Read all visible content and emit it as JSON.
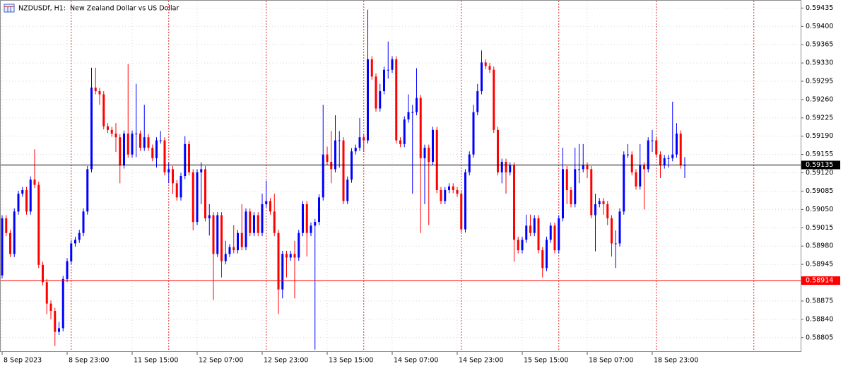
{
  "chart_data": {
    "type": "candlestick",
    "title": "NZDUSDf, H1:  New Zealand Dollar vs US Dollar",
    "up_color": "#0000ff",
    "down_color": "#ff0000",
    "grid": true,
    "ylim": [
      0.58779,
      0.59449
    ],
    "yticks": [
      0.59435,
      {
        "value": 0.594,
        "label": "0.59400"
      },
      0.59365,
      {
        "value": 0.5933,
        "label": "0.59330"
      },
      0.59295,
      {
        "value": 0.5926,
        "label": "0.59260"
      },
      0.59225,
      {
        "value": 0.5919,
        "label": "0.59190"
      },
      0.59155,
      {
        "value": 0.5912,
        "label": "0.59120"
      },
      0.59085,
      {
        "value": 0.5905,
        "label": "0.59050"
      },
      0.59015,
      {
        "value": 0.5898,
        "label": "0.58980"
      },
      0.58945,
      0.58875,
      {
        "value": 0.5884,
        "label": "0.58840"
      },
      0.58805
    ],
    "price_lines": [
      {
        "value": 0.59135,
        "color": "#000000"
      },
      {
        "value": 0.58914,
        "color": "#ff0000"
      }
    ],
    "categories": [
      "8 Sep 2023",
      null,
      null,
      null,
      null,
      null,
      null,
      null,
      null,
      null,
      null,
      null,
      null,
      null,
      null,
      null,
      "8 Sep 23:00",
      null,
      null,
      null,
      null,
      null,
      null,
      null,
      null,
      null,
      null,
      null,
      null,
      null,
      null,
      null,
      "11 Sep 15:00",
      null,
      null,
      null,
      null,
      null,
      null,
      null,
      null,
      null,
      null,
      null,
      null,
      null,
      null,
      null,
      "12 Sep 07:00",
      null,
      null,
      null,
      null,
      null,
      null,
      null,
      null,
      null,
      null,
      null,
      null,
      null,
      null,
      null,
      "12 Sep 23:00",
      null,
      null,
      null,
      null,
      null,
      null,
      null,
      null,
      null,
      null,
      null,
      null,
      null,
      null,
      null,
      "13 Sep 15:00",
      null,
      null,
      null,
      null,
      null,
      null,
      null,
      null,
      null,
      null,
      null,
      null,
      null,
      null,
      null,
      "14 Sep 07:00",
      null,
      null,
      null,
      null,
      null,
      null,
      null,
      null,
      null,
      null,
      null,
      null,
      null,
      null,
      null,
      "14 Sep 23:00",
      null,
      null,
      null,
      null,
      null,
      null,
      null,
      null,
      null,
      null,
      null,
      null,
      null,
      null,
      null,
      "15 Sep 15:00",
      null,
      null,
      null,
      null,
      null,
      null,
      null,
      null,
      null,
      null,
      null,
      null,
      null,
      null,
      null,
      "18 Sep 07:00",
      null,
      null,
      null,
      null,
      null,
      null,
      null,
      null,
      null,
      null,
      null,
      null,
      null,
      null,
      null,
      "18 Sep 23:00",
      null,
      null,
      null,
      null,
      null,
      null,
      null,
      null
    ],
    "open": [
      0.58924,
      0.59033,
      0.59005,
      0.58965,
      0.59046,
      0.5908,
      0.59087,
      0.59046,
      0.59107,
      0.59097,
      0.58944,
      0.58911,
      0.5887,
      0.58856,
      0.58816,
      0.58823,
      0.58917,
      0.58951,
      0.58985,
      0.58992,
      0.59005,
      0.59046,
      0.59127,
      0.59283,
      0.59276,
      0.5927,
      0.59209,
      0.59202,
      0.59195,
      0.59188,
      0.59134,
      0.59195,
      0.59155,
      0.59195,
      0.59195,
      0.59168,
      0.59188,
      0.59168,
      0.59148,
      0.59182,
      0.59182,
      0.59121,
      0.59127,
      0.591,
      0.59073,
      0.59114,
      0.59175,
      0.59121,
      0.59026,
      0.59121,
      0.59127,
      0.59033,
      0.59039,
      0.58965,
      0.59039,
      0.58951,
      0.58965,
      0.58978,
      0.58972,
      0.59005,
      0.58978,
      0.59046,
      0.59005,
      0.59039,
      0.59005,
      0.5906,
      0.59066,
      0.59046,
      0.59005,
      0.58897,
      0.58965,
      0.58958,
      0.58965,
      0.58958,
      0.59005,
      0.5906,
      0.59005,
      0.59019,
      0.59026,
      0.59073,
      0.59155,
      0.59141,
      0.59127,
      0.59182,
      0.59182,
      0.59066,
      0.59107,
      0.59161,
      0.59168,
      0.59188,
      0.59182,
      0.59337,
      0.59304,
      0.59243,
      0.59276,
      0.59317,
      0.59317,
      0.59337,
      0.59182,
      0.59175,
      0.59222,
      0.59236,
      0.59236,
      0.59263,
      0.59148,
      0.59168,
      0.59141,
      0.59202,
      0.59087,
      0.59066,
      0.59087,
      0.59094,
      0.59087,
      0.5908,
      0.59012,
      0.59121,
      0.59155,
      0.59236,
      0.59276,
      0.59331,
      0.59324,
      0.59317,
      0.59202,
      0.59121,
      0.59141,
      0.59121,
      0.59134,
      0.58992,
      0.58972,
      0.58992,
      0.59019,
      0.59005,
      0.59033,
      0.58972,
      0.58938,
      0.58992,
      0.59019,
      0.58972,
      0.59033,
      0.59127,
      0.59087,
      0.5906,
      0.59127,
      0.59127,
      0.59134,
      0.59127,
      0.59039,
      0.5906,
      0.59066,
      0.5906,
      0.59033,
      0.58985,
      0.58985,
      0.59046,
      0.59155,
      0.59155,
      0.59121,
      0.59094,
      0.59134,
      0.59127,
      0.59182,
      0.59182,
      0.59155,
      0.59134,
      0.59148,
      0.59148,
      0.59155,
      0.59195,
      0.59134
    ],
    "high": [
      0.59039,
      0.59039,
      0.59011,
      0.59052,
      0.59086,
      0.59093,
      0.59093,
      0.59113,
      0.59165,
      0.59103,
      0.5895,
      0.58917,
      0.58876,
      0.58862,
      0.58835,
      0.58923,
      0.58957,
      0.58991,
      0.58998,
      0.59011,
      0.59052,
      0.59133,
      0.59321,
      0.59321,
      0.59282,
      0.59276,
      0.59215,
      0.59208,
      0.59215,
      0.59194,
      0.59201,
      0.59328,
      0.59201,
      0.5929,
      0.59201,
      0.5925,
      0.59194,
      0.59174,
      0.59188,
      0.592,
      0.59188,
      0.5914,
      0.59133,
      0.59106,
      0.5912,
      0.5919,
      0.59181,
      0.59127,
      0.59127,
      0.5914,
      0.59133,
      0.5906,
      0.59045,
      0.59045,
      0.59045,
      0.5899,
      0.58984,
      0.5902,
      0.59011,
      0.5906,
      0.59052,
      0.59052,
      0.59045,
      0.59045,
      0.5908,
      0.59105,
      0.59072,
      0.5908,
      0.59011,
      0.58971,
      0.58971,
      0.58971,
      0.5899,
      0.59011,
      0.59066,
      0.59066,
      0.59025,
      0.59032,
      0.59079,
      0.5925,
      0.5917,
      0.592,
      0.5923,
      0.592,
      0.59188,
      0.59113,
      0.59167,
      0.59174,
      0.59225,
      0.59194,
      0.59432,
      0.59343,
      0.5931,
      0.5929,
      0.59323,
      0.59371,
      0.59343,
      0.59343,
      0.59188,
      0.59228,
      0.5927,
      0.5925,
      0.5932,
      0.59269,
      0.59174,
      0.59174,
      0.59208,
      0.59208,
      0.59093,
      0.59093,
      0.591,
      0.591,
      0.59093,
      0.59086,
      0.59127,
      0.59161,
      0.5925,
      0.5929,
      0.59354,
      0.59337,
      0.5933,
      0.59323,
      0.59208,
      0.59147,
      0.59147,
      0.5914,
      0.5914,
      0.58998,
      0.58998,
      0.5904,
      0.5904,
      0.59039,
      0.59039,
      0.58978,
      0.58998,
      0.59025,
      0.59025,
      0.59039,
      0.59168,
      0.59133,
      0.59093,
      0.59168,
      0.59175,
      0.59175,
      0.5914,
      0.59133,
      0.5908,
      0.59072,
      0.59072,
      0.59066,
      0.59039,
      0.5901,
      0.59052,
      0.59161,
      0.59175,
      0.59161,
      0.59127,
      0.59175,
      0.5914,
      0.59188,
      0.59202,
      0.59188,
      0.59161,
      0.59154,
      0.59154,
      0.59256,
      0.59215,
      0.59201,
      0.5915
    ],
    "low": [
      0.58918,
      0.58999,
      0.58959,
      0.58959,
      0.5904,
      0.59074,
      0.5904,
      0.5904,
      0.59091,
      0.58938,
      0.58905,
      0.5885,
      0.5884,
      0.58789,
      0.5881,
      0.58817,
      0.58911,
      0.58945,
      0.58979,
      0.58986,
      0.58999,
      0.5904,
      0.59121,
      0.5927,
      0.5925,
      0.59203,
      0.59196,
      0.59189,
      0.5916,
      0.591,
      0.59128,
      0.59149,
      0.59149,
      0.5915,
      0.59162,
      0.59162,
      0.59162,
      0.59142,
      0.5913,
      0.59176,
      0.59115,
      0.591,
      0.5908,
      0.59067,
      0.59067,
      0.59108,
      0.59115,
      0.5901,
      0.5902,
      0.5906,
      0.59027,
      0.59,
      0.58877,
      0.58959,
      0.5892,
      0.58945,
      0.58959,
      0.58966,
      0.58966,
      0.58972,
      0.58972,
      0.58999,
      0.58999,
      0.58999,
      0.58999,
      0.59054,
      0.5904,
      0.58999,
      0.5885,
      0.5888,
      0.5892,
      0.58952,
      0.5888,
      0.58952,
      0.58999,
      0.5896,
      0.58999,
      0.58782,
      0.5902,
      0.59067,
      0.59135,
      0.591,
      0.59121,
      0.5913,
      0.5906,
      0.5906,
      0.59101,
      0.59155,
      0.59162,
      0.5916,
      0.59176,
      0.59298,
      0.59237,
      0.59237,
      0.5927,
      0.593,
      0.59311,
      0.59176,
      0.59169,
      0.59169,
      0.59216,
      0.5908,
      0.5923,
      0.59005,
      0.5906,
      0.5902,
      0.59135,
      0.59081,
      0.5906,
      0.5906,
      0.59081,
      0.59081,
      0.59074,
      0.59006,
      0.59006,
      0.59115,
      0.59149,
      0.5923,
      0.5927,
      0.59318,
      0.59311,
      0.59196,
      0.59115,
      0.591,
      0.5908,
      0.59115,
      0.5895,
      0.58966,
      0.58966,
      0.58986,
      0.58999,
      0.58999,
      0.58966,
      0.5892,
      0.58932,
      0.58986,
      0.58966,
      0.58966,
      0.59027,
      0.5906,
      0.59054,
      0.59054,
      0.591,
      0.59121,
      0.5911,
      0.59033,
      0.5897,
      0.59054,
      0.5904,
      0.5902,
      0.5896,
      0.58938,
      0.58979,
      0.5904,
      0.59149,
      0.59115,
      0.59088,
      0.59088,
      0.5905,
      0.59121,
      0.5916,
      0.59149,
      0.5911,
      0.59128,
      0.5913,
      0.59142,
      0.59149,
      0.59128,
      0.5911
    ],
    "close": [
      0.59033,
      0.59005,
      0.58965,
      0.59046,
      0.5908,
      0.59087,
      0.59046,
      0.59107,
      0.59097,
      0.58944,
      0.58911,
      0.5887,
      0.58856,
      0.58816,
      0.58823,
      0.58917,
      0.58951,
      0.58985,
      0.58992,
      0.59005,
      0.59046,
      0.59127,
      0.59283,
      0.59276,
      0.5927,
      0.59209,
      0.59202,
      0.59195,
      0.59188,
      0.59134,
      0.59195,
      0.59155,
      0.59195,
      0.59195,
      0.59168,
      0.59188,
      0.59168,
      0.59148,
      0.59182,
      0.59182,
      0.59121,
      0.59127,
      0.591,
      0.59073,
      0.59114,
      0.59175,
      0.59121,
      0.59026,
      0.59121,
      0.59127,
      0.59033,
      0.59039,
      0.58965,
      0.59039,
      0.58951,
      0.58965,
      0.58978,
      0.58972,
      0.59005,
      0.58978,
      0.59046,
      0.59005,
      0.59039,
      0.59005,
      0.5906,
      0.59066,
      0.59046,
      0.59005,
      0.58897,
      0.58965,
      0.58958,
      0.58965,
      0.58958,
      0.59005,
      0.5906,
      0.59005,
      0.59019,
      0.59026,
      0.59073,
      0.59155,
      0.59141,
      0.59127,
      0.59182,
      0.59182,
      0.59066,
      0.59107,
      0.59161,
      0.59168,
      0.59188,
      0.59182,
      0.59337,
      0.59304,
      0.59243,
      0.59276,
      0.59317,
      0.59317,
      0.59337,
      0.59182,
      0.59175,
      0.59222,
      0.59236,
      0.59236,
      0.59263,
      0.59148,
      0.59168,
      0.59141,
      0.59202,
      0.59087,
      0.59066,
      0.59087,
      0.59094,
      0.59087,
      0.5908,
      0.59012,
      0.59121,
      0.59155,
      0.59236,
      0.59276,
      0.59331,
      0.59324,
      0.59317,
      0.59202,
      0.59121,
      0.59141,
      0.59121,
      0.59134,
      0.58992,
      0.58972,
      0.58992,
      0.59019,
      0.59005,
      0.59033,
      0.58972,
      0.58938,
      0.58992,
      0.59019,
      0.58972,
      0.59033,
      0.59127,
      0.59087,
      0.5906,
      0.59127,
      0.59127,
      0.59134,
      0.59127,
      0.59039,
      0.5906,
      0.59066,
      0.5906,
      0.59033,
      0.58985,
      0.58985,
      0.59046,
      0.59155,
      0.59155,
      0.59121,
      0.59094,
      0.59134,
      0.59127,
      0.59182,
      0.59182,
      0.59155,
      0.59134,
      0.59148,
      0.59148,
      0.59155,
      0.59195,
      0.59134,
      0.59135
    ]
  }
}
